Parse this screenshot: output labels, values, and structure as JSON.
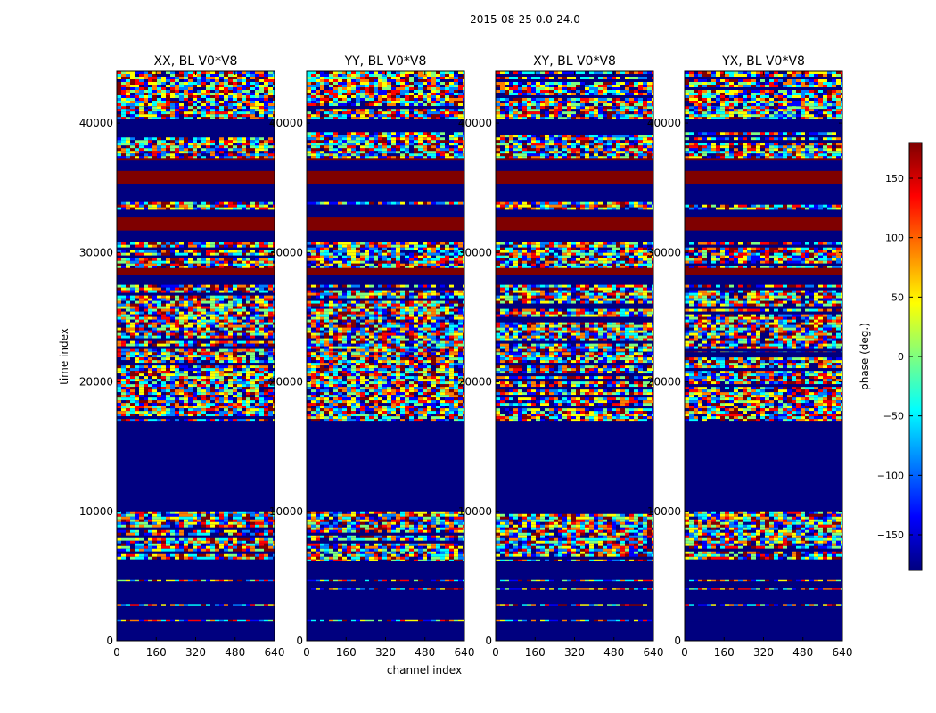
{
  "chart_data": {
    "type": "heatmap",
    "title": "2015-08-25 0.0-24.0",
    "xlabel": "channel index",
    "ylabel": "time index",
    "xlim": [
      0,
      640
    ],
    "ylim": [
      0,
      44000
    ],
    "x_ticks": [
      0,
      160,
      320,
      480,
      640
    ],
    "y_ticks": [
      0,
      10000,
      20000,
      30000,
      40000
    ],
    "panels": [
      {
        "title": "XX, BL V0*V8"
      },
      {
        "title": "YY, BL V0*V8"
      },
      {
        "title": "XY, BL V0*V8"
      },
      {
        "title": "YX, BL V0*V8"
      }
    ],
    "colorbar": {
      "label": "phase (deg.)",
      "range": [
        -180,
        180
      ],
      "ticks": [
        -150,
        -100,
        -50,
        0,
        50,
        100,
        150
      ],
      "tick_labels": [
        "−150",
        "−100",
        "−50",
        "0",
        "50",
        "100",
        "150"
      ],
      "colormap": [
        "#00007f",
        "#0000ff",
        "#007fff",
        "#00ffff",
        "#7fff7f",
        "#ffff00",
        "#ff7f00",
        "#ff0000",
        "#7f0000"
      ]
    },
    "bands": [
      {
        "from": 0,
        "to": 1500,
        "kind": "blank"
      },
      {
        "from": 1500,
        "to": 1600,
        "kind": "noise"
      },
      {
        "from": 1600,
        "to": 2700,
        "kind": "blank"
      },
      {
        "from": 2700,
        "to": 2800,
        "kind": "noise"
      },
      {
        "from": 2800,
        "to": 3950,
        "kind": "blank"
      },
      {
        "from": 3950,
        "to": 4050,
        "kind": "noise"
      },
      {
        "from": 4050,
        "to": 4600,
        "kind": "blank"
      },
      {
        "from": 4600,
        "to": 4700,
        "kind": "noise"
      },
      {
        "from": 4700,
        "to": 6200,
        "kind": "blank"
      },
      {
        "from": 6200,
        "to": 10000,
        "kind": "noise"
      },
      {
        "from": 10000,
        "to": 17000,
        "kind": "blank"
      },
      {
        "from": 17000,
        "to": 22300,
        "kind": "noise"
      },
      {
        "from": 22300,
        "to": 27500,
        "kind": "noise"
      },
      {
        "from": 27500,
        "to": 28300,
        "kind": "blank"
      },
      {
        "from": 28300,
        "to": 28800,
        "kind": "red"
      },
      {
        "from": 28800,
        "to": 30800,
        "kind": "noise"
      },
      {
        "from": 30800,
        "to": 31700,
        "kind": "blank"
      },
      {
        "from": 31700,
        "to": 32700,
        "kind": "red"
      },
      {
        "from": 32700,
        "to": 33300,
        "kind": "blank"
      },
      {
        "from": 33300,
        "to": 33900,
        "kind": "noise"
      },
      {
        "from": 33900,
        "to": 35300,
        "kind": "blank"
      },
      {
        "from": 35300,
        "to": 36300,
        "kind": "red"
      },
      {
        "from": 36300,
        "to": 37100,
        "kind": "blank"
      },
      {
        "from": 37100,
        "to": 37300,
        "kind": "red"
      },
      {
        "from": 37300,
        "to": 39300,
        "kind": "noise"
      },
      {
        "from": 39300,
        "to": 40300,
        "kind": "blank"
      },
      {
        "from": 40300,
        "to": 41300,
        "kind": "noise"
      },
      {
        "from": 41300,
        "to": 44000,
        "kind": "noise"
      }
    ]
  }
}
